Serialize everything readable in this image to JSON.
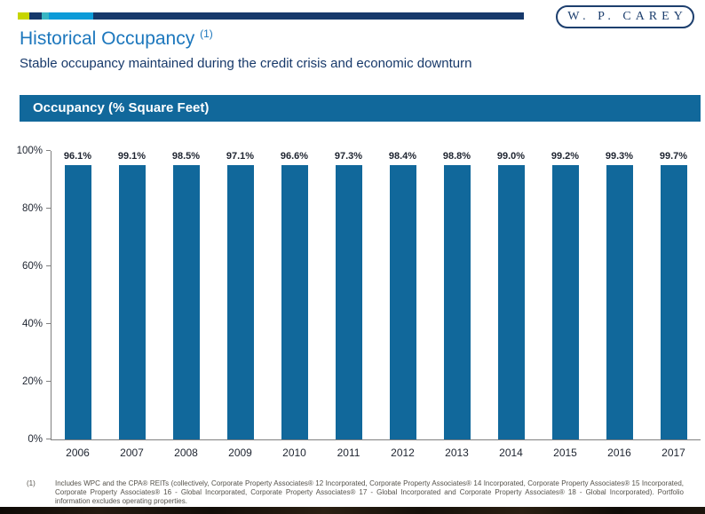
{
  "brand": {
    "logo_text": "W. P. CAREY"
  },
  "header": {
    "title": "Historical Occupancy",
    "title_ref": "(1)",
    "subtitle": "Stable occupancy maintained during the credit crisis and economic downturn"
  },
  "chart_data": {
    "type": "bar",
    "title": "Occupancy (% Square Feet)",
    "categories": [
      "2006",
      "2007",
      "2008",
      "2009",
      "2010",
      "2011",
      "2012",
      "2013",
      "2014",
      "2015",
      "2016",
      "2017"
    ],
    "values": [
      96.1,
      99.1,
      98.5,
      97.1,
      96.6,
      97.3,
      98.4,
      98.8,
      99.0,
      99.2,
      99.3,
      99.7
    ],
    "value_labels": [
      "96.1%",
      "99.1%",
      "98.5%",
      "97.1%",
      "96.6%",
      "97.3%",
      "98.4%",
      "98.8%",
      "99.0%",
      "99.2%",
      "99.3%",
      "99.7%"
    ],
    "xlabel": "",
    "ylabel": "",
    "ylim": [
      0,
      100
    ],
    "yticks": [
      0,
      20,
      40,
      60,
      80,
      100
    ],
    "ytick_labels": [
      "0%",
      "20%",
      "40%",
      "60%",
      "80%",
      "100%"
    ],
    "grid": false,
    "legend": false,
    "bar_color": "#11689b"
  },
  "footnote": {
    "marker": "(1)",
    "text": "Includes WPC and the CPA® REITs (collectively, Corporate Property Associates® 12 Incorporated, Corporate Property Associates® 14 Incorporated, Corporate Property Associates® 15 Incorporated, Corporate Property Associates® 16 - Global Incorporated, Corporate Property Associates® 17 - Global Incorporated and Corporate Property Associates® 18 - Global Incorporated). Portfolio information excludes operating properties."
  },
  "colors": {
    "title_blue": "#1c77bd",
    "subtitle_navy": "#17396a",
    "bar_blue": "#11689b",
    "topbar_navy": "#16396b",
    "topbar_teal": "#38b6c3",
    "topbar_light_blue": "#0d9bd8",
    "topbar_lime": "#c6d500",
    "logo_navy": "#1d3f6e",
    "axis_gray": "#808080"
  }
}
